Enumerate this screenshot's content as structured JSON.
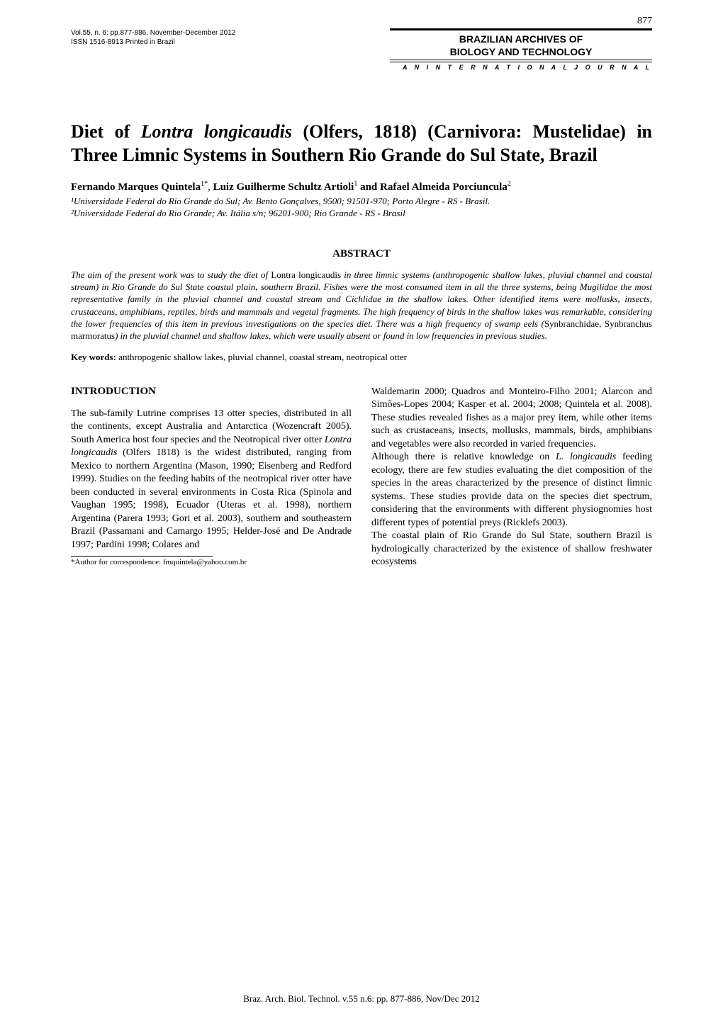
{
  "page_number": "877",
  "pub": {
    "line1": "Vol.55, n. 6: pp.877-886, November-December 2012",
    "line2": "ISSN 1516-8913    Printed in Brazil"
  },
  "journal_box": {
    "line1": "BRAZILIAN ARCHIVES OF",
    "line2": "BIOLOGY AND TECHNOLOGY",
    "sub": "A N   I N T E R N A T I O N A L   J O U R N A L"
  },
  "title": {
    "line1_prefix": "Diet of ",
    "line1_ital": "Lontra longicaudis",
    "line1_suffix": " (Olfers, 1818) (Carnivora:",
    "line2": "Mustelidae) in Three Limnic Systems in Southern Rio",
    "line3": "Grande do Sul State, Brazil"
  },
  "authors": {
    "a1_name": "Fernando Marques Quintela",
    "a1_sup": "1*",
    "sep1": ", ",
    "a2_name": "Luiz Guilherme Schultz Artioli",
    "a2_sup": "1",
    "sep2": " and ",
    "a3_name": "Rafael Almeida Porciuncula",
    "a3_sup": "2"
  },
  "affils": {
    "l1": "¹Universidade Federal do Rio Grande do Sul; Av. Bento Gonçalves, 9500; 91501-970; Porto Alegre - RS - Brasil.",
    "l2": "²Universidade Federal do Rio Grande; Av. Itália s/n; 96201-900; Rio Grande - RS - Brasil"
  },
  "abstract": {
    "head": "ABSTRACT",
    "s1": "The aim of the present work was to study the diet of ",
    "s1r": "Lontra longicaudis",
    "s2": " in three limnic systems (anthropogenic shallow lakes, pluvial channel and coastal stream) in Rio Grande do Sul State coastal plain, southern Brazil. Fishes were the most consumed item in all the three systems, being Mugilidae the most representative family in the pluvial channel and coastal stream and Cichlidae in the shallow lakes. Other identified items were mollusks, insects, crustaceans, amphibians, reptiles, birds and mammals and vegetal fragments. The high frequency of birds in the shallow lakes was remarkable, considering the lower frequencies of this item in previous investigations on the species diet.  There was a high frequency of swamp eels (",
    "s2r": "Synbranchidae, Synbranchus marmoratus",
    "s3": ") in the pluvial channel and shallow lakes, which were usually absent or found in low frequencies in previous studies."
  },
  "keywords": {
    "label": "Key words: ",
    "text": "anthropogenic shallow lakes, pluvial channel, coastal stream, neotropical otter"
  },
  "intro_head": "INTRODUCTION",
  "left_col": {
    "p1a": "The sub-family Lutrine comprises 13 otter species, distributed in all the continents, except Australia and Antarctica (Wozencraft 2005). South America host four species and the Neotropical river otter ",
    "p1b_ital": "Lontra longicaudis",
    "p1c": " (Olfers 1818) is the widest distributed, ranging from Mexico to northern Argentina (Mason, 1990; Eisenberg and Redford 1999). Studies on the feeding habits of the neotropical river otter have been conducted in several environments in Costa Rica (Spinola and Vaughan 1995; 1998), Ecuador (Uteras et al. 1998), northern Argentina (Parera 1993; Gori et al. 2003), southern and southeastern Brazil (Passamani and Camargo 1995; Helder-José and De Andrade 1997; Pardini 1998; Colares and"
  },
  "right_col": {
    "p1": "Waldemarin 2000; Quadros and Monteiro-Filho 2001; Alarcon and Simões-Lopes 2004; Kasper et al. 2004; 2008; Quintela et al. 2008). These studies revealed fishes as a major prey item, while other items such as crustaceans, insects, mollusks, mammals, birds, amphibians and vegetables were also recorded in varied frequencies.",
    "p2a": "Although there is relative knowledge on ",
    "p2a_ital": "L. longicaudis",
    "p2b": " feeding ecology, there are few studies evaluating the diet composition of the species in the areas characterized by the presence of distinct limnic systems. These studies provide data on the species diet spectrum, considering that the environments with different physiognomies host different types of potential preys (Ricklefs 2003).",
    "p3": "The coastal plain of Rio Grande do Sul State, southern Brazil is hydrologically characterized by the existence of shallow freshwater ecosystems"
  },
  "correspondence": "*Author for correspondence: fmquintela@yahoo.com.br",
  "footer": "Braz. Arch. Biol. Technol. v.55 n.6: pp. 877-886, Nov/Dec 2012"
}
